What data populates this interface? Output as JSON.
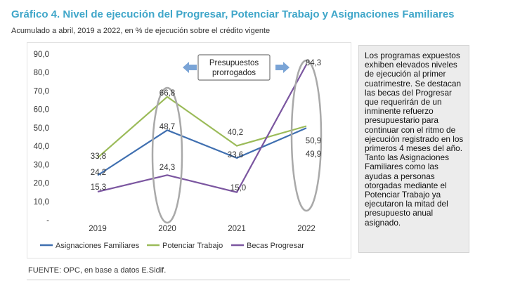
{
  "title": "Gráfico 4. Nivel de ejecución del Progresar, Potenciar Trabajo y Asignaciones Familiares",
  "subtitle": "Acumulado a abril, 2019 a 2022, en % de ejecución sobre el crédito vigente",
  "side_note": "Los programas expuestos exhiben elevados niveles de ejecución al primer cuatrimestre. Se destacan las becas del Progresar que requerirán de un inminente refuerzo presupuestario para continuar con el ritmo de ejecución registrado en los primeros 4 meses del año. Tanto las Asignaciones Familiares como las ayudas a personas otorgadas mediante el Potenciar Trabajo ya ejecutaron la mitad del presupuesto anual asignado.",
  "source": "FUENTE: OPC, en base a datos E.Sidif.",
  "callout": {
    "line1": "Presupuestos",
    "line2": "prorrogados"
  },
  "colors": {
    "title": "#3fa6c9",
    "asignaciones": "#3f6fb0",
    "potenciar": "#9bbb59",
    "progresar": "#7b56a0",
    "ellipse": "#a9a9a9",
    "arrow": "#7aa4d6"
  },
  "chart_data": {
    "type": "line",
    "categories": [
      "2019",
      "2020",
      "2021",
      "2022"
    ],
    "ylim": [
      0,
      90
    ],
    "yticks": [
      "-",
      "10,0",
      "20,0",
      "30,0",
      "40,0",
      "50,0",
      "60,0",
      "70,0",
      "80,0",
      "90,0"
    ],
    "grid": false,
    "legend_position": "bottom",
    "series": [
      {
        "name": "Asignaciones Familiares",
        "values": [
          24.2,
          48.7,
          33.6,
          49.9
        ],
        "labels": [
          "24,2",
          "48,7",
          "33,6",
          "49,9"
        ]
      },
      {
        "name": "Potenciar Trabajo",
        "values": [
          33.8,
          66.8,
          40.2,
          50.9
        ],
        "labels": [
          "33,8",
          "66,8",
          "40,2",
          "50,9"
        ]
      },
      {
        "name": "Becas Progresar",
        "values": [
          15.3,
          24.3,
          15.0,
          84.3
        ],
        "labels": [
          "15,3",
          "24,3",
          "15,0",
          "84,3"
        ]
      }
    ]
  }
}
